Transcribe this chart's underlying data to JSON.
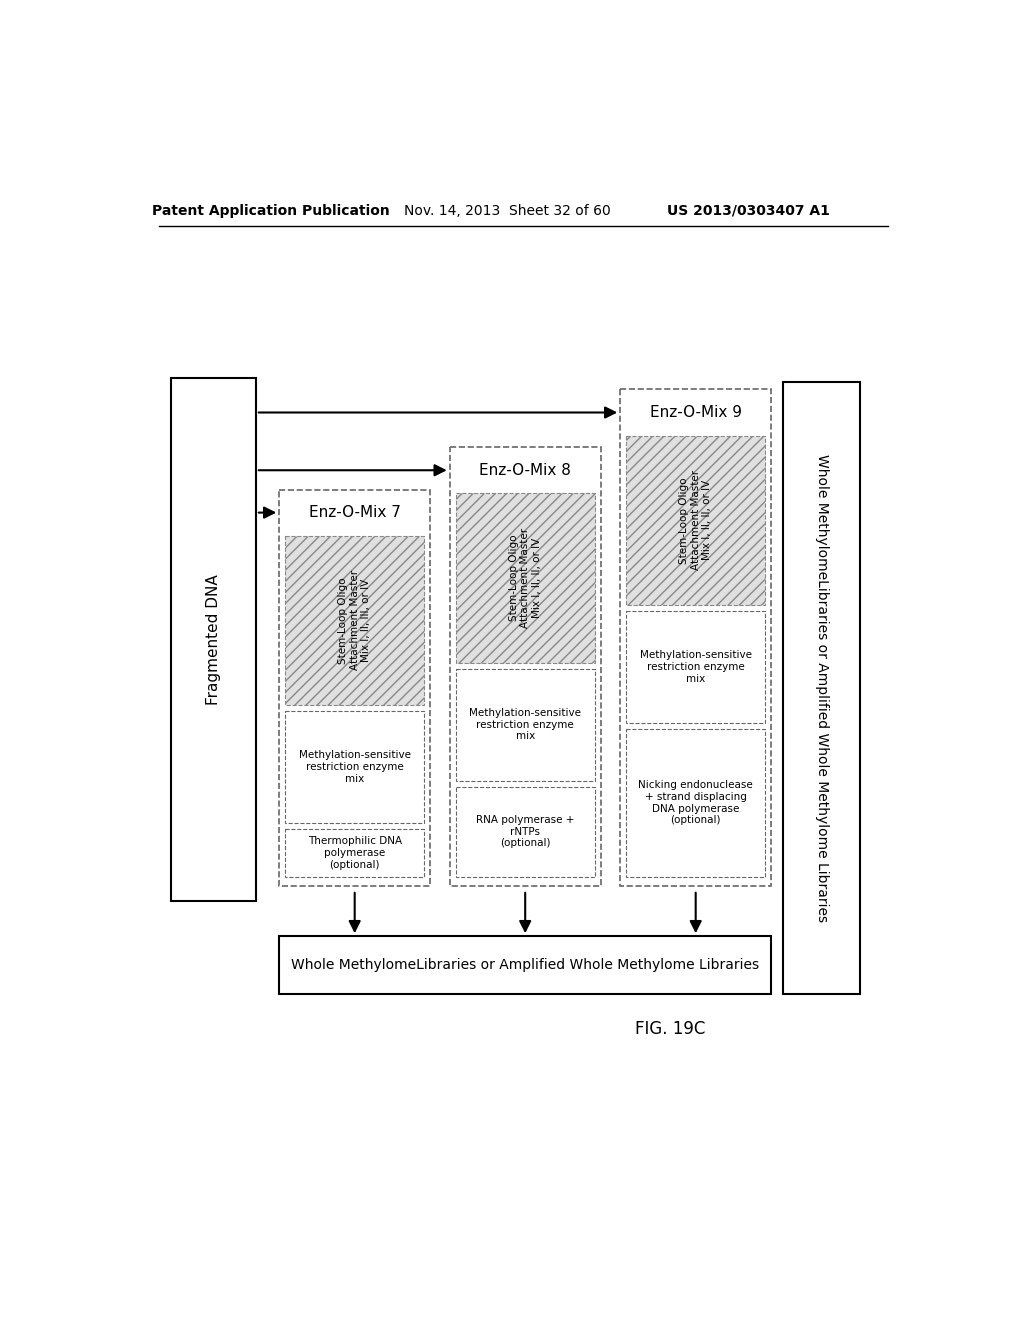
{
  "header_left": "Patent Application Publication",
  "header_mid": "Nov. 14, 2013  Sheet 32 of 60",
  "header_right": "US 2013/0303407 A1",
  "fig_label": "FIG. 19C",
  "fragmented_dna_label": "Fragmented DNA",
  "output_label": "Whole MethylomeLibraries or Amplified Whole Methylome Libraries",
  "mixes": [
    {
      "name": "Enz-O-Mix 7",
      "box1_text": "Stem-Loop Oligo\nAttachment Master\nMix I, II, III, or IV",
      "box2_text": "Methylation-sensitive\nrestriction enzyme\nmix",
      "box3_text": "Thermophilic DNA\npolymerase\n(optional)"
    },
    {
      "name": "Enz-O-Mix 8",
      "box1_text": "Stem-Loop Oligo\nAttachment Master\nMix I, II, II, or IV",
      "box2_text": "Methylation-sensitive\nrestriction enzyme\nmix",
      "box3_text": "RNA polymerase +\nrNTPs\n(optional)"
    },
    {
      "name": "Enz-O-Mix 9",
      "box1_text": "Stem-Loop Oligo\nAttachment Master\nMix I, II, II, or IV",
      "box2_text": "Methylation-sensitive\nrestriction enzyme\nmix",
      "box3_text": "Nicking endonuclease\n+ strand displacing\nDNA polymerase\n(optional)"
    }
  ],
  "bg_color": "#ffffff"
}
